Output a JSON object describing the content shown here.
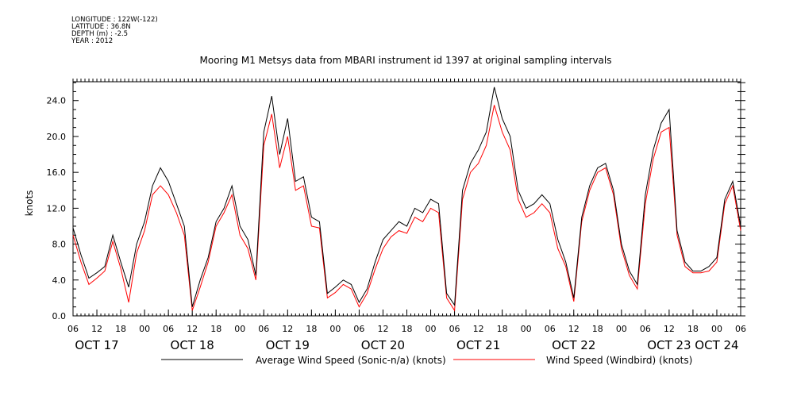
{
  "header": {
    "lines": [
      "LONGITUDE : 122W(-122)",
      "LATITUDE : 36.8N",
      "DEPTH (m) : -2.5",
      "YEAR : 2012"
    ],
    "title": "Mooring M1 Metsys data from MBARI instrument id 1397 at original sampling intervals"
  },
  "chart_data": {
    "type": "line",
    "title": "Mooring M1 Metsys data from MBARI instrument id 1397 at original sampling intervals",
    "ylabel": "knots",
    "xlabel": "",
    "ylim": [
      0,
      26.1
    ],
    "xlim": [
      "2012-10-17 06:00",
      "2012-10-24 06:00"
    ],
    "yticks": [
      "0.0",
      "4.0",
      "8.0",
      "12.0",
      "16.0",
      "20.0",
      "24.0"
    ],
    "xtick_hours": [
      "06",
      "12",
      "18",
      "00",
      "06",
      "12",
      "18",
      "00",
      "06",
      "12",
      "18",
      "00",
      "06",
      "12",
      "18",
      "00",
      "06",
      "12",
      "18",
      "00",
      "06",
      "12",
      "18",
      "00",
      "06",
      "12",
      "18",
      "00",
      "06"
    ],
    "xdays": [
      {
        "label": "OCT 17",
        "at": "2012-10-17 12:00"
      },
      {
        "label": "OCT 18",
        "at": "2012-10-18 12:00"
      },
      {
        "label": "OCT 19",
        "at": "2012-10-19 12:00"
      },
      {
        "label": "OCT 20",
        "at": "2012-10-20 12:00"
      },
      {
        "label": "OCT 21",
        "at": "2012-10-21 12:00"
      },
      {
        "label": "OCT 22",
        "at": "2012-10-22 12:00"
      },
      {
        "label": "OCT 23",
        "at": "2012-10-23 12:00"
      },
      {
        "label": "OCT 24",
        "at": "2012-10-24 00:00"
      }
    ],
    "x": [
      "2012-10-17 06:00",
      "2012-10-17 08:00",
      "2012-10-17 10:00",
      "2012-10-17 12:00",
      "2012-10-17 14:00",
      "2012-10-17 16:00",
      "2012-10-17 18:00",
      "2012-10-17 20:00",
      "2012-10-17 22:00",
      "2012-10-18 00:00",
      "2012-10-18 02:00",
      "2012-10-18 04:00",
      "2012-10-18 06:00",
      "2012-10-18 08:00",
      "2012-10-18 10:00",
      "2012-10-18 12:00",
      "2012-10-18 14:00",
      "2012-10-18 16:00",
      "2012-10-18 18:00",
      "2012-10-18 20:00",
      "2012-10-18 22:00",
      "2012-10-19 00:00",
      "2012-10-19 02:00",
      "2012-10-19 04:00",
      "2012-10-19 06:00",
      "2012-10-19 08:00",
      "2012-10-19 10:00",
      "2012-10-19 12:00",
      "2012-10-19 14:00",
      "2012-10-19 16:00",
      "2012-10-19 18:00",
      "2012-10-19 20:00",
      "2012-10-19 22:00",
      "2012-10-20 00:00",
      "2012-10-20 02:00",
      "2012-10-20 04:00",
      "2012-10-20 06:00",
      "2012-10-20 08:00",
      "2012-10-20 10:00",
      "2012-10-20 12:00",
      "2012-10-20 14:00",
      "2012-10-20 16:00",
      "2012-10-20 18:00",
      "2012-10-20 20:00",
      "2012-10-20 22:00",
      "2012-10-21 00:00",
      "2012-10-21 02:00",
      "2012-10-21 04:00",
      "2012-10-21 06:00",
      "2012-10-21 08:00",
      "2012-10-21 10:00",
      "2012-10-21 12:00",
      "2012-10-21 14:00",
      "2012-10-21 16:00",
      "2012-10-21 18:00",
      "2012-10-21 20:00",
      "2012-10-21 22:00",
      "2012-10-22 00:00",
      "2012-10-22 02:00",
      "2012-10-22 04:00",
      "2012-10-22 06:00",
      "2012-10-22 08:00",
      "2012-10-22 10:00",
      "2012-10-22 12:00",
      "2012-10-22 14:00",
      "2012-10-22 16:00",
      "2012-10-22 18:00",
      "2012-10-22 20:00",
      "2012-10-22 22:00",
      "2012-10-23 00:00",
      "2012-10-23 02:00",
      "2012-10-23 04:00",
      "2012-10-23 06:00",
      "2012-10-23 08:00",
      "2012-10-23 10:00",
      "2012-10-23 12:00",
      "2012-10-23 14:00",
      "2012-10-23 16:00",
      "2012-10-23 18:00",
      "2012-10-23 20:00",
      "2012-10-23 22:00",
      "2012-10-24 00:00",
      "2012-10-24 02:00",
      "2012-10-24 04:00",
      "2012-10-24 06:00"
    ],
    "series": [
      {
        "name": "Average Wind Speed (Sonic-n/a) (knots)",
        "color": "#000000",
        "values": [
          9.8,
          6.8,
          4.2,
          4.8,
          5.5,
          9.0,
          6.0,
          3.2,
          8.0,
          10.5,
          14.5,
          16.5,
          15.0,
          12.5,
          10.0,
          1.0,
          4.0,
          6.5,
          10.5,
          12.0,
          14.5,
          10.0,
          8.5,
          4.5,
          20.5,
          24.5,
          18.0,
          22.0,
          15.0,
          15.5,
          11.0,
          10.5,
          2.5,
          3.2,
          4.0,
          3.5,
          1.5,
          3.0,
          6.0,
          8.5,
          9.5,
          10.5,
          10.0,
          12.0,
          11.5,
          13.0,
          12.5,
          2.5,
          1.2,
          14.0,
          17.0,
          18.5,
          20.5,
          25.5,
          22.0,
          20.0,
          14.0,
          12.0,
          12.5,
          13.5,
          12.5,
          8.5,
          6.0,
          2.0,
          11.0,
          14.5,
          16.5,
          17.0,
          14.0,
          8.0,
          5.0,
          3.5,
          13.5,
          18.5,
          21.5,
          23.0,
          9.5,
          6.0,
          5.0,
          5.0,
          5.5,
          6.5,
          13.0,
          15.0,
          10.0
        ]
      },
      {
        "name": "Wind Speed (Windbird) (knots)",
        "color": "#ff0000",
        "values": [
          9.0,
          6.0,
          3.5,
          4.2,
          5.0,
          8.3,
          5.3,
          1.5,
          7.0,
          9.5,
          13.5,
          14.5,
          13.5,
          11.5,
          9.0,
          0.6,
          3.2,
          6.0,
          10.0,
          11.5,
          13.5,
          9.0,
          7.5,
          4.0,
          19.0,
          22.5,
          16.5,
          20.0,
          14.0,
          14.5,
          10.0,
          9.8,
          2.0,
          2.6,
          3.5,
          3.0,
          1.0,
          2.5,
          5.2,
          7.5,
          8.8,
          9.5,
          9.2,
          11.0,
          10.5,
          12.0,
          11.5,
          2.0,
          0.6,
          13.0,
          16.0,
          17.0,
          19.0,
          23.5,
          20.5,
          18.5,
          13.0,
          11.0,
          11.5,
          12.5,
          11.5,
          7.5,
          5.5,
          1.6,
          10.5,
          14.0,
          16.0,
          16.5,
          13.5,
          7.5,
          4.5,
          3.0,
          12.5,
          17.5,
          20.5,
          21.0,
          9.0,
          5.5,
          4.8,
          4.8,
          5.0,
          6.0,
          12.5,
          14.5,
          9.5
        ]
      }
    ],
    "grid": false,
    "legend": "bottom"
  }
}
